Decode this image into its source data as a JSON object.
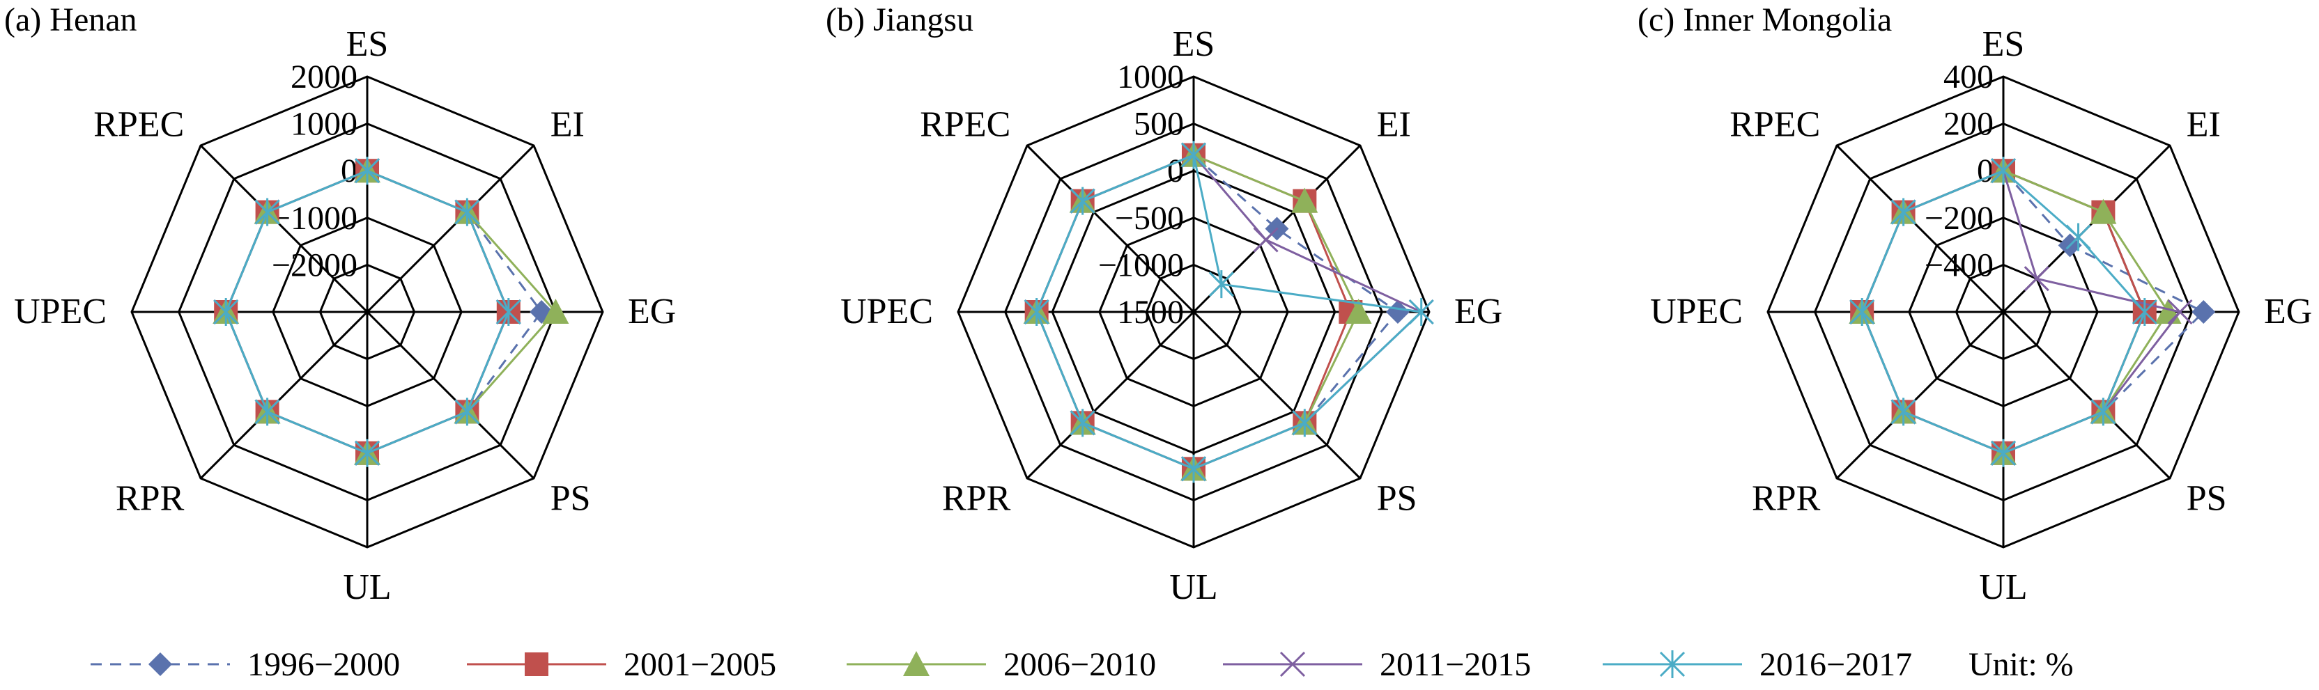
{
  "unit_label": "Unit: %",
  "colors": {
    "1996-2000": "#5a72ad",
    "2001-2005": "#c0504d",
    "2006-2010": "#8fb15a",
    "2011-2015": "#7e5fa0",
    "2016-2017": "#4bacc6"
  },
  "chart_data": [
    {
      "type": "radar",
      "title": "(a) Henan",
      "axes": [
        "ES",
        "EI",
        "EG",
        "PS",
        "UL",
        "RPR",
        "UPEC",
        "RPEC"
      ],
      "ticks": [
        "2000",
        "1000",
        "0",
        "−1000",
        "−2000"
      ],
      "rlim": [
        -3000,
        2000
      ],
      "series": [
        {
          "name": "1996−2000",
          "values": [
            0,
            0,
            700,
            0,
            0,
            0,
            0,
            0
          ]
        },
        {
          "name": "2001−2005",
          "values": [
            0,
            0,
            0,
            0,
            0,
            0,
            0,
            0
          ]
        },
        {
          "name": "2006−2010",
          "values": [
            0,
            0,
            1000,
            0,
            0,
            0,
            0,
            0
          ]
        },
        {
          "name": "2011−2015",
          "values": [
            0,
            0,
            0,
            0,
            0,
            0,
            0,
            0
          ]
        },
        {
          "name": "2016−2017",
          "values": [
            0,
            0,
            0,
            0,
            0,
            0,
            0,
            0
          ]
        }
      ]
    },
    {
      "type": "radar",
      "title": "(b) Jiangsu",
      "axes": [
        "ES",
        "EI",
        "EG",
        "PS",
        "UL",
        "RPR",
        "UPEC",
        "RPEC"
      ],
      "ticks": [
        "1000",
        "500",
        "0",
        "−500",
        "−1000",
        "−1500"
      ],
      "rlim": [
        -2000,
        1000
      ],
      "series": [
        {
          "name": "1996−2000",
          "values": [
            0,
            -500,
            600,
            0,
            0,
            0,
            0,
            0
          ]
        },
        {
          "name": "2001−2005",
          "values": [
            0,
            0,
            0,
            0,
            0,
            0,
            0,
            0
          ]
        },
        {
          "name": "2006−2010",
          "values": [
            0,
            0,
            100,
            0,
            0,
            0,
            0,
            0
          ]
        },
        {
          "name": "2011−2015",
          "values": [
            0,
            -700,
            900,
            0,
            0,
            0,
            0,
            0
          ]
        },
        {
          "name": "2016−2017",
          "values": [
            0,
            -1500,
            900,
            0,
            0,
            0,
            0,
            0
          ]
        }
      ]
    },
    {
      "type": "radar",
      "title": "(c) Inner Mongolia",
      "axes": [
        "ES",
        "EI",
        "EG",
        "PS",
        "UL",
        "RPR",
        "UPEC",
        "RPEC"
      ],
      "ticks": [
        "400",
        "200",
        "0",
        "−200",
        "−400"
      ],
      "rlim": [
        -600,
        400
      ],
      "series": [
        {
          "name": "1996−2000",
          "values": [
            0,
            -200,
            250,
            0,
            0,
            0,
            0,
            0
          ]
        },
        {
          "name": "2001−2005",
          "values": [
            0,
            0,
            0,
            0,
            0,
            0,
            0,
            0
          ]
        },
        {
          "name": "2006−2010",
          "values": [
            0,
            0,
            100,
            0,
            0,
            0,
            0,
            0
          ]
        },
        {
          "name": "2011−2015",
          "values": [
            0,
            -400,
            150,
            0,
            0,
            0,
            0,
            0
          ]
        },
        {
          "name": "2016−2017",
          "values": [
            0,
            -150,
            0,
            0,
            0,
            0,
            0,
            0
          ]
        }
      ]
    }
  ]
}
